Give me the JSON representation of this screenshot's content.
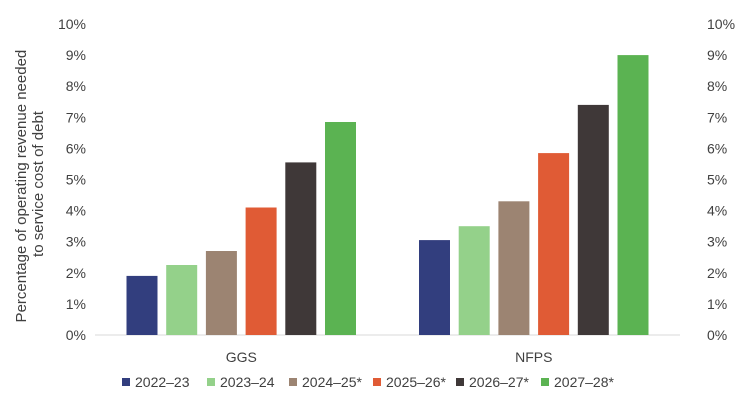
{
  "chart_data": {
    "type": "bar",
    "title": "",
    "xlabel": "",
    "ylabel": "Percentage of operating revenue needed to service cost of debt",
    "ylabel_lines": [
      "Percentage of operating revenue needed",
      "to service cost of debt"
    ],
    "ylim": [
      0,
      10
    ],
    "yticks": [
      "0%",
      "1%",
      "2%",
      "3%",
      "4%",
      "5%",
      "6%",
      "7%",
      "8%",
      "9%",
      "10%"
    ],
    "grid": false,
    "legend_position": "bottom",
    "categories": [
      "GGS",
      "NFPS"
    ],
    "series": [
      {
        "name": "2022–23",
        "color": "#323E7E",
        "values": [
          1.9,
          3.05
        ]
      },
      {
        "name": "2023–24",
        "color": "#94D18A",
        "values": [
          2.25,
          3.5
        ]
      },
      {
        "name": "2024–25*",
        "color": "#9C8472",
        "values": [
          2.7,
          4.3
        ]
      },
      {
        "name": "2025–26*",
        "color": "#E05B35",
        "values": [
          4.1,
          5.85
        ]
      },
      {
        "name": "2026–27*",
        "color": "#3F3838",
        "values": [
          5.55,
          7.4
        ]
      },
      {
        "name": "2027–28*",
        "color": "#5BB352",
        "values": [
          6.85,
          9.0
        ]
      }
    ]
  }
}
